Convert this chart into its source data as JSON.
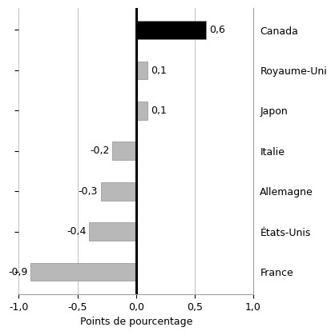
{
  "categories": [
    "Canada",
    "Royaume-Uni",
    "Japon",
    "Italie",
    "Allemagne",
    "États-Unis",
    "France"
  ],
  "values": [
    0.6,
    0.1,
    0.1,
    -0.2,
    -0.3,
    -0.4,
    -0.9
  ],
  "bar_colors": [
    "#000000",
    "#b8b8b8",
    "#b8b8b8",
    "#b8b8b8",
    "#b8b8b8",
    "#b8b8b8",
    "#b8b8b8"
  ],
  "xlabel": "Points de pourcentage",
  "xlim": [
    -1.0,
    1.0
  ],
  "xticks": [
    -1.0,
    -0.5,
    0.0,
    0.5,
    1.0
  ],
  "xtick_labels": [
    "-1,0",
    "-0,5",
    "0,0",
    "0,5",
    "1,0"
  ],
  "value_labels": [
    "0,6",
    "0,1",
    "0,1",
    "-0,2",
    "-0,3",
    "-0,4",
    "-0,9"
  ],
  "background_color": "#ffffff",
  "grid_color": "#c0c0c0",
  "bar_edge_color": "#909090",
  "label_fontsize": 9,
  "tick_fontsize": 9,
  "xlabel_fontsize": 9,
  "category_fontsize": 9
}
